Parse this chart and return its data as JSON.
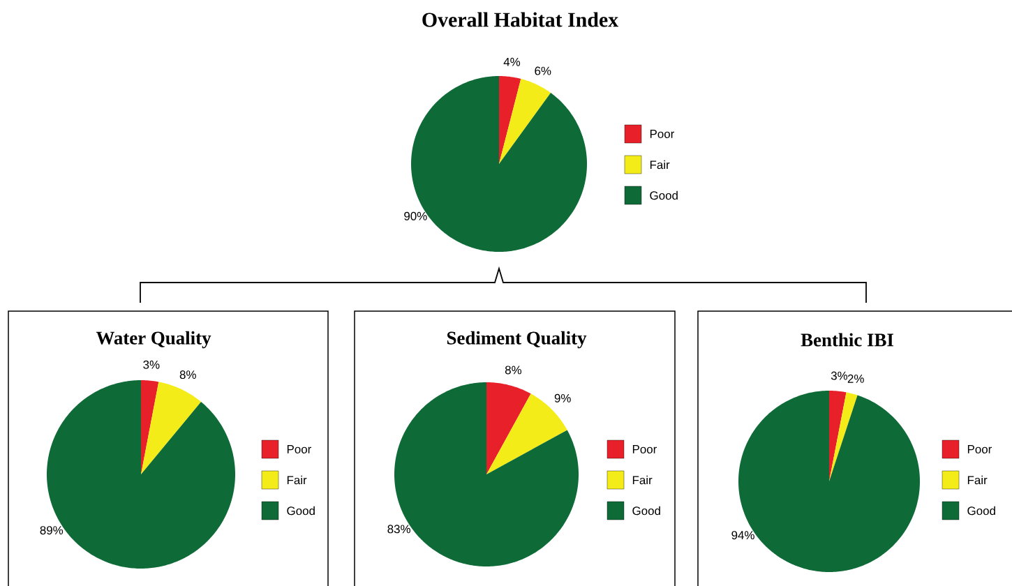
{
  "chart_data": [
    {
      "type": "pie",
      "title": "Overall Habitat Index",
      "categories": [
        "Poor",
        "Fair",
        "Good"
      ],
      "values": [
        4,
        6,
        90
      ],
      "value_labels": [
        "4%",
        "6%",
        "90%"
      ],
      "colors": [
        "#e8202a",
        "#f3ec18",
        "#0e6b38"
      ],
      "legend": "right"
    },
    {
      "type": "pie",
      "title": "Water Quality",
      "categories": [
        "Poor",
        "Fair",
        "Good"
      ],
      "values": [
        3,
        8,
        89
      ],
      "value_labels": [
        "3%",
        "8%",
        "89%"
      ],
      "colors": [
        "#e8202a",
        "#f3ec18",
        "#0e6b38"
      ],
      "legend": "right"
    },
    {
      "type": "pie",
      "title": "Sediment Quality",
      "categories": [
        "Poor",
        "Fair",
        "Good"
      ],
      "values": [
        8,
        9,
        83
      ],
      "value_labels": [
        "8%",
        "9%",
        "83%"
      ],
      "colors": [
        "#e8202a",
        "#f3ec18",
        "#0e6b38"
      ],
      "legend": "right"
    },
    {
      "type": "pie",
      "title": "Benthic IBI",
      "categories": [
        "Poor",
        "Fair",
        "Good"
      ],
      "values": [
        3,
        2,
        94
      ],
      "value_labels": [
        "3%",
        "2%",
        "94%"
      ],
      "colors": [
        "#e8202a",
        "#f3ec18",
        "#0e6b38"
      ],
      "legend": "right"
    }
  ]
}
